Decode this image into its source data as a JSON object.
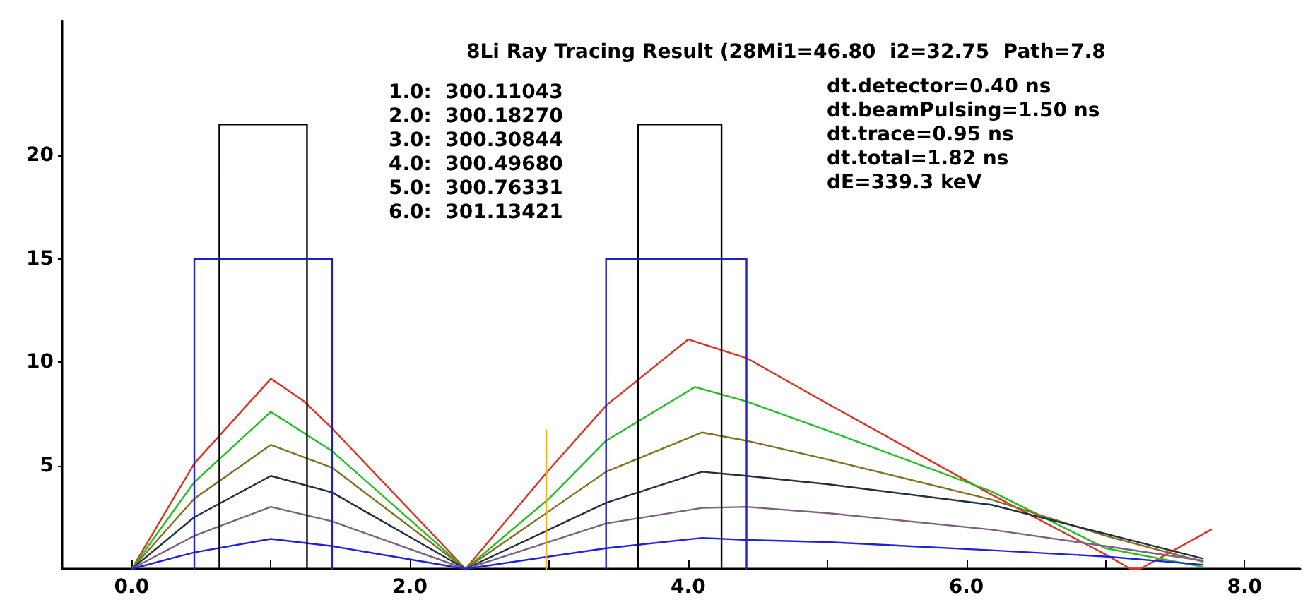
{
  "chart_data": {
    "type": "line",
    "title": "8Li Ray Tracing Result (28Mi1=46.80  i2=32.75  Path=7.8",
    "annotations": [
      "1.0:  300.11043\n2.0:  300.18270\n3.0:  300.30844\n4.0:  300.49680\n5.0:  300.76331\n6.0:  301.13421",
      "dt.detector=0.40 ns\ndt.beamPulsing=1.50 ns\ndt.trace=0.95 ns\ndt.total=1.82 ns\ndE=339.3 keV"
    ],
    "xlim": [
      -0.5,
      8.4
    ],
    "ylim": [
      0,
      26.5
    ],
    "xticks": [
      {
        "value": 0,
        "label": "0.0"
      },
      {
        "value": 1,
        "label": null
      },
      {
        "value": 2,
        "label": "2.0"
      },
      {
        "value": 3,
        "label": null
      },
      {
        "value": 4,
        "label": "4.0"
      },
      {
        "value": 5,
        "label": null
      },
      {
        "value": 6,
        "label": "6.0"
      },
      {
        "value": 7,
        "label": null
      },
      {
        "value": 8,
        "label": "8.0"
      }
    ],
    "yticks": [
      5,
      10,
      15,
      20
    ],
    "grid": false,
    "marker": "none",
    "line_style": "solid",
    "series": [
      {
        "color": "#e03020",
        "x": [
          0,
          0.45,
          1.0,
          1.24,
          1.44,
          2.4,
          3.0,
          3.41,
          4.0,
          4.42,
          5.0,
          6.18,
          7.0,
          7.18,
          7.25,
          7.76
        ],
        "values": [
          0,
          5.1,
          9.2,
          8.1,
          6.8,
          0,
          4.8,
          7.9,
          11.1,
          10.2,
          8.0,
          3.6,
          0.7,
          0,
          0,
          1.9
        ]
      },
      {
        "color": "#20c020",
        "x": [
          0,
          0.45,
          1.0,
          1.44,
          2.4,
          3.0,
          3.41,
          4.05,
          4.42,
          5.0,
          6.18,
          7.0,
          7.7
        ],
        "values": [
          0,
          4.2,
          7.6,
          5.7,
          0,
          3.4,
          6.2,
          8.8,
          8.1,
          6.7,
          3.75,
          1.0,
          0.1
        ]
      },
      {
        "color": "#807020",
        "x": [
          0,
          0.45,
          1.0,
          1.44,
          2.4,
          3.41,
          4.1,
          4.42,
          5.0,
          6.18,
          7.0,
          7.7
        ],
        "values": [
          0,
          3.4,
          6.0,
          4.9,
          0,
          4.7,
          6.6,
          6.2,
          5.3,
          3.35,
          1.6,
          0.35
        ]
      },
      {
        "color": "#203040",
        "x": [
          0,
          0.45,
          1.0,
          1.44,
          2.4,
          3.41,
          4.1,
          4.42,
          5.0,
          6.18,
          7.0,
          7.7
        ],
        "values": [
          0,
          2.5,
          4.5,
          3.7,
          0,
          3.2,
          4.7,
          4.5,
          4.1,
          3.1,
          1.7,
          0.5
        ]
      },
      {
        "color": "#806080",
        "x": [
          0,
          0.45,
          1.0,
          1.44,
          2.4,
          3.41,
          4.1,
          4.42,
          5.0,
          6.18,
          7.0,
          7.7
        ],
        "values": [
          0,
          1.6,
          3.0,
          2.3,
          0,
          2.2,
          2.95,
          3.0,
          2.7,
          1.9,
          1.1,
          0.4
        ]
      },
      {
        "color": "#2020e0",
        "x": [
          0,
          0.45,
          1.0,
          1.44,
          2.4,
          3.41,
          4.1,
          4.42,
          5.0,
          6.18,
          7.0,
          7.7
        ],
        "values": [
          0,
          0.8,
          1.45,
          1.1,
          0,
          1.0,
          1.5,
          1.4,
          1.3,
          0.9,
          0.6,
          0.2
        ]
      },
      {
        "color": "#000000",
        "x": [
          0.63,
          0.63,
          1.26,
          1.26
        ],
        "values": [
          0,
          21.5,
          21.5,
          0
        ]
      },
      {
        "color": "#2020c0",
        "x": [
          0.45,
          0.45,
          1.44,
          1.44
        ],
        "values": [
          0,
          15,
          15,
          0
        ]
      },
      {
        "color": "#000000",
        "x": [
          3.64,
          3.64,
          4.24,
          4.24
        ],
        "values": [
          0,
          21.5,
          21.5,
          0
        ]
      },
      {
        "color": "#2020c0",
        "x": [
          3.41,
          3.41,
          4.42,
          4.42
        ],
        "values": [
          0,
          15,
          15,
          0
        ]
      },
      {
        "color": "#f0b020",
        "x": [
          2.98,
          2.98
        ],
        "values": [
          0,
          6.7
        ]
      }
    ]
  }
}
